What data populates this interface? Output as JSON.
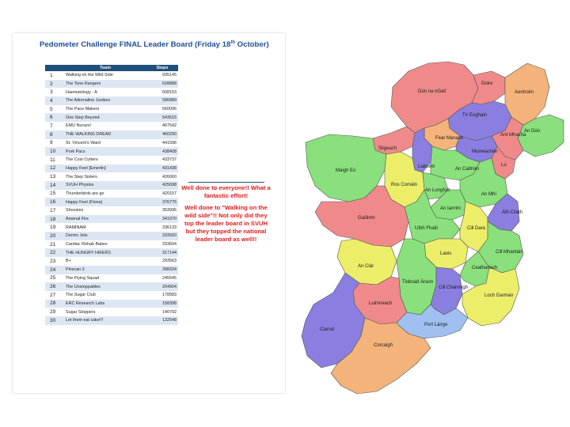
{
  "leaderboard": {
    "title_main": "Pedometer Challenge FINAL Leader Board (Friday 18",
    "title_sup": "th",
    "title_end": " October)",
    "headers": {
      "rank": "",
      "team": "Team",
      "steps": "Steps"
    },
    "rows": [
      {
        "rank": "1",
        "team": "Walking on the Wild Side",
        "steps": "935145"
      },
      {
        "rank": "2",
        "team": "The Tone Rangers",
        "steps": "628888"
      },
      {
        "rank": "3",
        "team": "Haematology - A",
        "steps": "608153"
      },
      {
        "rank": "4",
        "team": "The Adrenaline Junkies",
        "steps": "586889"
      },
      {
        "rank": "5",
        "team": "The Pace Makers",
        "steps": "560096"
      },
      {
        "rank": "6",
        "team": "One Step Beyond",
        "steps": "543515"
      },
      {
        "rank": "7",
        "team": "EMU Nurses!",
        "steps": "467542"
      },
      {
        "rank": "8",
        "team": "THE WALKING DREAD",
        "steps": "460290"
      },
      {
        "rank": "9",
        "team": "St. Vincent's Ward",
        "steps": "441596"
      },
      {
        "rank": "10",
        "team": "Pork Pacs",
        "steps": "438408"
      },
      {
        "rank": "11",
        "team": "The Cost Cutters",
        "steps": "433737"
      },
      {
        "rank": "12",
        "team": "Happy Feet [Emerlin]",
        "steps": "431438"
      },
      {
        "rank": "13",
        "team": "The Step Sisters",
        "steps": "426060"
      },
      {
        "rank": "14",
        "team": "SVUH Physios",
        "steps": "425698"
      },
      {
        "rank": "15",
        "team": "Thunderbirds are go",
        "steps": "420157"
      },
      {
        "rank": "16",
        "team": "Happy Feet (Fiona)",
        "steps": "376775"
      },
      {
        "rank": "17",
        "team": "Shoozies",
        "steps": "353996"
      },
      {
        "rank": "18",
        "team": "Arsenal Fire",
        "steps": "341970"
      },
      {
        "rank": "19",
        "team": "RAMINAM",
        "steps": "336133"
      },
      {
        "rank": "20",
        "team": "Dermo Jets",
        "steps": "333920"
      },
      {
        "rank": "21",
        "team": "Cardiac Rehab Babes",
        "steps": "333604"
      },
      {
        "rank": "22",
        "team": "THE HUNGRY HIKERS",
        "steps": "317144"
      },
      {
        "rank": "23",
        "team": "B+",
        "steps": "293563"
      },
      {
        "rank": "24",
        "team": "Pinscan 3",
        "steps": "288334"
      },
      {
        "rank": "25",
        "team": "The Flying Squad",
        "steps": "245545"
      },
      {
        "rank": "26",
        "team": "The Unstoppables",
        "steps": "204904"
      },
      {
        "rank": "27",
        "team": "The Sugar Club",
        "steps": "178583"
      },
      {
        "rank": "28",
        "team": "ERC Research Labs",
        "steps": "158398"
      },
      {
        "rank": "29",
        "team": "Sugar Stoppers",
        "steps": "140792"
      },
      {
        "rank": "30",
        "team": "Let them eat cake!!!",
        "steps": "132548"
      }
    ]
  },
  "note": {
    "line1": "Well done to everyone!! What a fantastic effort!",
    "line2": "Well done to \"Walking on the wild side\"!! Not only did they top the leader board in SVUH but they topped the national leader board as well!!"
  },
  "map": {
    "labels": {
      "dun_na_ngall": "Dún na nGall",
      "doire": "Doire",
      "aontroim": "Aontroim",
      "tir_eoghain": "Tír Eoghain",
      "an_dun": "An Dún",
      "fear_manach": "Fear Manach",
      "ard_mhacha": "Ard Mhacha",
      "muineachan": "Muineachán",
      "sligeach": "Sligeach",
      "liatroim": "Liatroim",
      "an_cabhan": "An Cabhán",
      "maigh_eo": "Maigh Eo",
      "ros_comain": "Ros Comáin",
      "an_longfort": "An Longfort",
      "lu": "Lú",
      "an_mhi": "An Mhí",
      "an_iarmhi": "An Iarmhí",
      "gaillimh": "Gaillimh",
      "uibh_fhaili": "Uíbh Fhailí",
      "cill_dara": "Cill Dara",
      "ath_cliath": "Áth Cliath",
      "laois": "Laois",
      "cill_mhantain": "Cill Mhantáin",
      "an_clar": "An Clár",
      "tiobraid_arann": "Tiobraid Árann",
      "cill_chainnigh": "Cill Chainnigh",
      "ceatharlach": "Ceatharlach",
      "loch_garman": "Loch Garman",
      "luimneach": "Luimneach",
      "port_lairge": "Port Láirge",
      "ciarrai": "Ciarraí",
      "corcaigh": "Corcaigh"
    },
    "colors": {
      "pink": "#f08a8a",
      "orange": "#f4b37a",
      "purple": "#8a7fe0",
      "yellow": "#ecee6a",
      "green": "#8ae07c",
      "blue": "#7aa0ea",
      "lightblue": "#9fc0f0"
    }
  }
}
